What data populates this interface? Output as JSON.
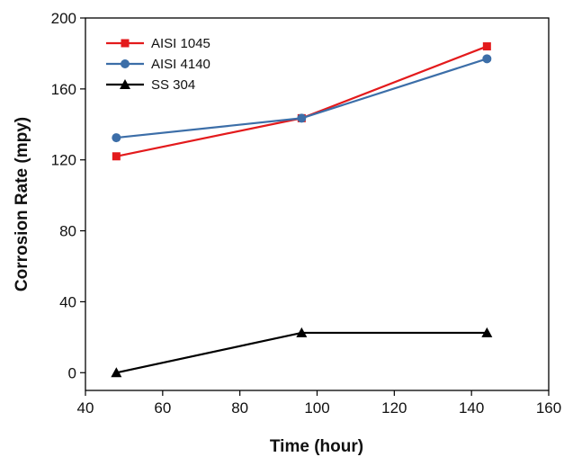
{
  "chart_data": {
    "type": "line",
    "title": "",
    "xlabel": "Time (hour)",
    "ylabel": "Corrosion Rate (mpy)",
    "xlim": [
      40,
      160
    ],
    "ylim": [
      -10,
      200
    ],
    "xticks": [
      40,
      60,
      80,
      100,
      120,
      140,
      160
    ],
    "yticks": [
      0,
      40,
      80,
      120,
      160,
      200
    ],
    "grid": false,
    "legend_position": "top-left",
    "series": [
      {
        "name": "AISI 1045",
        "color": "#e31a1c",
        "marker": "square",
        "x": [
          48,
          96,
          144
        ],
        "y": [
          122,
          143.5,
          184
        ]
      },
      {
        "name": "AISI 4140",
        "color": "#3c6ea8",
        "marker": "circle",
        "x": [
          48,
          96,
          144
        ],
        "y": [
          132.5,
          143.5,
          177
        ]
      },
      {
        "name": "SS 304",
        "color": "#000000",
        "marker": "triangle",
        "x": [
          48,
          96,
          144
        ],
        "y": [
          0,
          22.5,
          22.5
        ]
      }
    ]
  }
}
